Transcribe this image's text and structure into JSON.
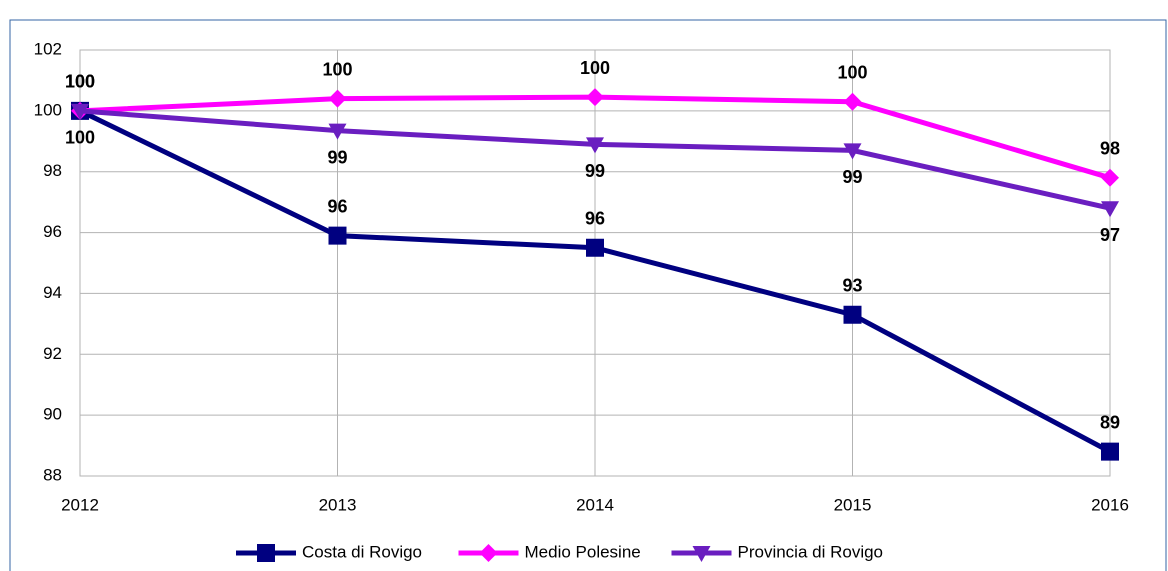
{
  "chart_data": {
    "type": "line",
    "categories": [
      "2012",
      "2013",
      "2014",
      "2015",
      "2016"
    ],
    "series": [
      {
        "name": "Costa di Rovigo",
        "color": "#000080",
        "marker": "square",
        "label_position": "above",
        "values": [
          100,
          95.9,
          95.5,
          93.3,
          88.8
        ],
        "value_labels": [
          "100",
          "96",
          "96",
          "93",
          "89"
        ]
      },
      {
        "name": "Medio Polesine",
        "color": "#ff00ff",
        "marker": "diamond",
        "label_position": "above",
        "values": [
          100,
          100.4,
          100.45,
          100.3,
          97.8
        ],
        "value_labels": [
          "100",
          "100",
          "100",
          "100",
          "98"
        ]
      },
      {
        "name": "Provincia di Rovigo",
        "color": "#6a1ec0",
        "marker": "triangle-down",
        "label_position": "below",
        "values": [
          100,
          99.35,
          98.9,
          98.7,
          96.8
        ],
        "value_labels": [
          "100",
          "99",
          "99",
          "99",
          "97"
        ]
      }
    ],
    "ylim": [
      88,
      102
    ],
    "yticks": [
      88,
      90,
      92,
      94,
      96,
      98,
      100,
      102
    ],
    "grid": true,
    "legend": "bottom"
  }
}
